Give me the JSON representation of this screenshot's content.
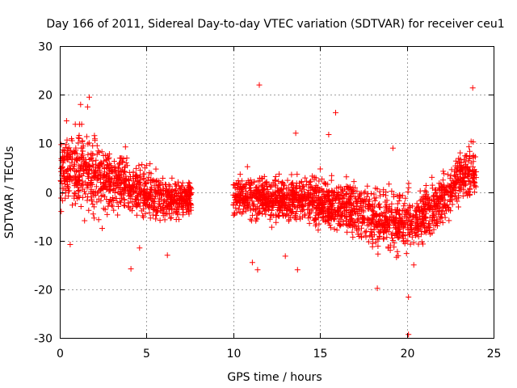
{
  "chart_data": {
    "type": "scatter",
    "title": "Day 166 of 2011, Sidereal Day-to-day VTEC variation (SDTVAR) for receiver ceu1",
    "xlabel": "GPS time / hours",
    "ylabel": "SDTVAR / TECUs",
    "xlim": [
      0,
      25
    ],
    "ylim": [
      -30,
      30
    ],
    "xticks": [
      "0",
      "5",
      "10",
      "15",
      "20",
      "25"
    ],
    "xtick_values": [
      0,
      5,
      10,
      15,
      20,
      25
    ],
    "yticks": [
      "30",
      "20",
      "10",
      "0",
      "-10",
      "-20",
      "-30"
    ],
    "ytick_values": [
      30,
      20,
      10,
      0,
      -10,
      -20,
      -30
    ],
    "grid": true,
    "marker": "+",
    "marker_color": "#ff0000",
    "series": [
      {
        "name": "SDTVAR",
        "segments": [
          {
            "x_range": [
              0.0,
              7.6
            ],
            "profile_x": [
              0.0,
              0.8,
              1.5,
              2.5,
              3.5,
              4.5,
              5.5,
              6.5,
              7.6
            ],
            "profile_center": [
              3.5,
              4.5,
              4.0,
              3.0,
              2.0,
              1.0,
              -1.0,
              -1.5,
              -1.0
            ],
            "profile_spread": [
              4.5,
              5.5,
              5.5,
              5.0,
              4.0,
              3.5,
              3.0,
              2.5,
              2.5
            ]
          },
          {
            "x_range": [
              10.0,
              24.0
            ],
            "profile_x": [
              10.0,
              12.0,
              14.0,
              16.0,
              18.0,
              19.5,
              20.5,
              21.5,
              22.5,
              23.2,
              24.0
            ],
            "profile_center": [
              -0.5,
              -1.5,
              -1.5,
              -2.5,
              -5.0,
              -6.5,
              -6.0,
              -3.5,
              0.0,
              4.0,
              4.0
            ],
            "profile_spread": [
              3.0,
              3.0,
              3.0,
              3.5,
              4.0,
              4.0,
              4.0,
              3.5,
              3.5,
              4.0,
              4.0
            ]
          }
        ],
        "outliers": [
          [
            1.2,
            18.0
          ],
          [
            1.6,
            17.5
          ],
          [
            1.7,
            19.5
          ],
          [
            4.1,
            -15.8
          ],
          [
            4.6,
            -11.5
          ],
          [
            6.2,
            -13.0
          ],
          [
            0.6,
            -10.8
          ],
          [
            11.5,
            22.0
          ],
          [
            11.1,
            -14.5
          ],
          [
            11.4,
            -16.0
          ],
          [
            13.0,
            -13.2
          ],
          [
            13.7,
            -16.0
          ],
          [
            15.9,
            16.3
          ],
          [
            18.3,
            -19.8
          ],
          [
            20.1,
            -21.6
          ],
          [
            20.1,
            -29.3
          ],
          [
            20.4,
            -15.0
          ],
          [
            23.8,
            21.4
          ],
          [
            15.5,
            11.8
          ],
          [
            13.6,
            12.1
          ],
          [
            19.2,
            9.0
          ]
        ]
      }
    ]
  }
}
